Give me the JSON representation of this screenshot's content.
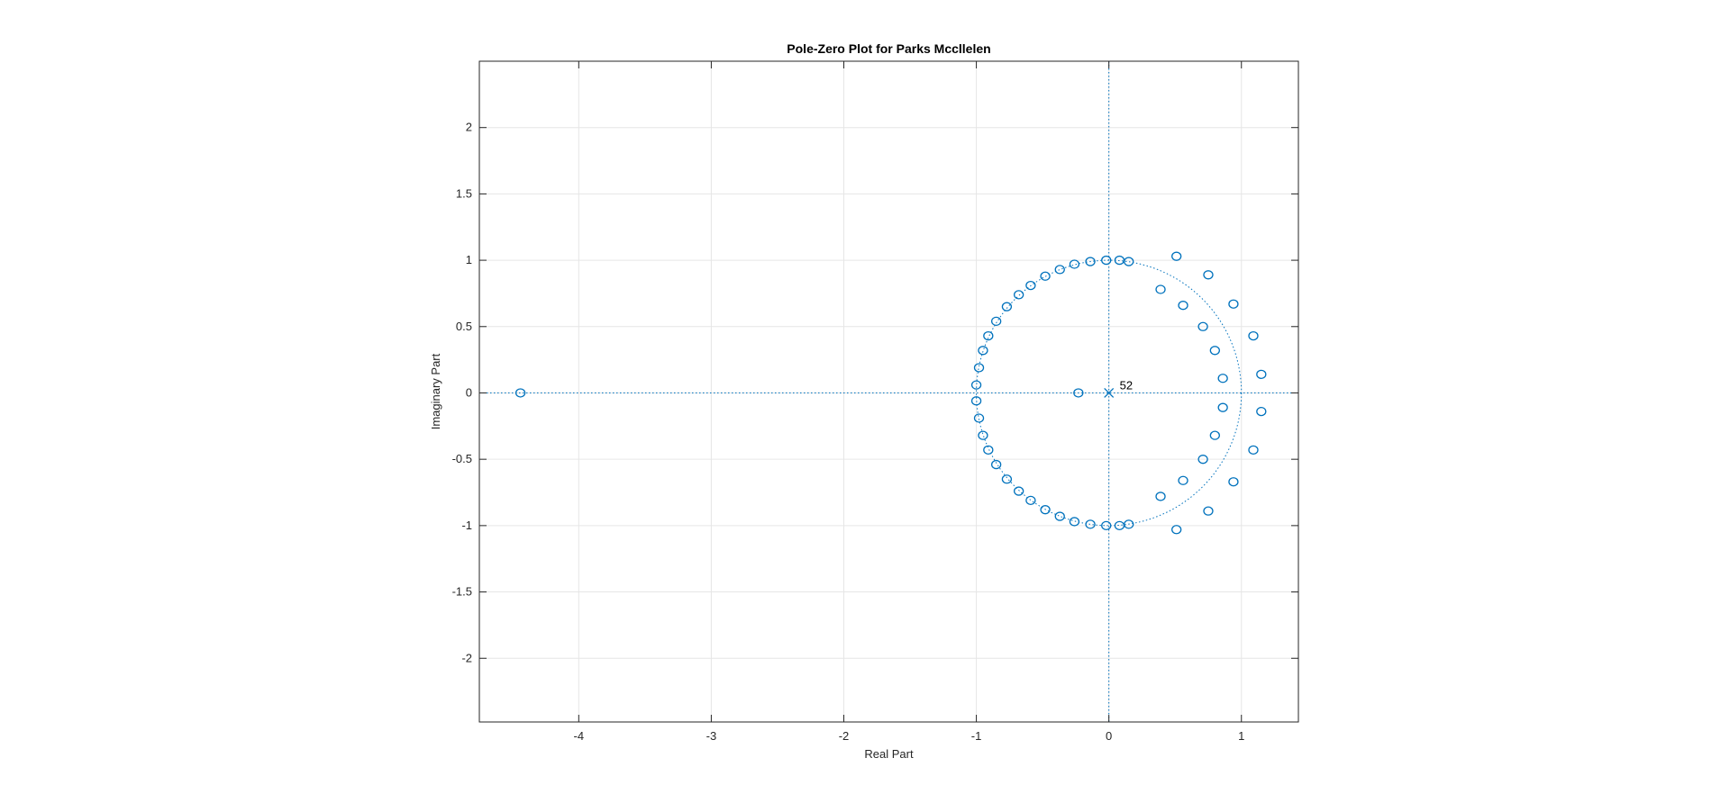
{
  "chart_data": {
    "type": "scatter",
    "title": "Pole-Zero Plot for Parks Mccllelen",
    "xlabel": "Real Part",
    "ylabel": "Imaginary Part",
    "xlim": [
      -4.75,
      1.43
    ],
    "ylim": [
      -2.48,
      2.5
    ],
    "xticks": [
      -4,
      -3,
      -2,
      -1,
      0,
      1
    ],
    "yticks": [
      -2,
      -1.5,
      -1,
      -0.5,
      0,
      0.5,
      1,
      1.5,
      2
    ],
    "xtick_labels": [
      "-4",
      "-3",
      "-2",
      "-1",
      "0",
      "1"
    ],
    "ytick_labels": [
      "-2",
      "-1.5",
      "-1",
      "-0.5",
      "0",
      "0.5",
      "1",
      "1.5",
      "2"
    ],
    "grid": true,
    "unit_circle": true,
    "colors": {
      "series": "#0072BD",
      "grid": "#e6e6e6",
      "axes": "#262626"
    },
    "series": [
      {
        "marker": "o",
        "points": [
          [
            -4.44,
            0
          ],
          [
            -0.23,
            0
          ],
          [
            -1.0,
            0.06
          ],
          [
            -0.98,
            0.19
          ],
          [
            -0.95,
            0.32
          ],
          [
            -0.91,
            0.43
          ],
          [
            -0.85,
            0.54
          ],
          [
            -0.77,
            0.65
          ],
          [
            -0.68,
            0.74
          ],
          [
            -0.59,
            0.81
          ],
          [
            -0.48,
            0.88
          ],
          [
            -0.37,
            0.93
          ],
          [
            -0.26,
            0.97
          ],
          [
            -0.14,
            0.99
          ],
          [
            -0.02,
            1.0
          ],
          [
            0.08,
            1.0
          ],
          [
            0.15,
            0.99
          ],
          [
            -1.0,
            -0.06
          ],
          [
            -0.98,
            -0.19
          ],
          [
            -0.95,
            -0.32
          ],
          [
            -0.91,
            -0.43
          ],
          [
            -0.85,
            -0.54
          ],
          [
            -0.77,
            -0.65
          ],
          [
            -0.68,
            -0.74
          ],
          [
            -0.59,
            -0.81
          ],
          [
            -0.48,
            -0.88
          ],
          [
            -0.37,
            -0.93
          ],
          [
            -0.26,
            -0.97
          ],
          [
            -0.14,
            -0.99
          ],
          [
            -0.02,
            -1.0
          ],
          [
            0.08,
            -1.0
          ],
          [
            0.15,
            -0.99
          ],
          [
            0.51,
            1.03
          ],
          [
            0.75,
            0.89
          ],
          [
            0.94,
            0.67
          ],
          [
            1.09,
            0.43
          ],
          [
            1.15,
            0.14
          ],
          [
            0.39,
            0.78
          ],
          [
            0.56,
            0.66
          ],
          [
            0.71,
            0.5
          ],
          [
            0.8,
            0.32
          ],
          [
            0.86,
            0.11
          ],
          [
            0.51,
            -1.03
          ],
          [
            0.75,
            -0.89
          ],
          [
            0.94,
            -0.67
          ],
          [
            1.09,
            -0.43
          ],
          [
            1.15,
            -0.14
          ],
          [
            0.39,
            -0.78
          ],
          [
            0.56,
            -0.66
          ],
          [
            0.71,
            -0.5
          ],
          [
            0.8,
            -0.32
          ],
          [
            0.86,
            -0.11
          ]
        ]
      },
      {
        "marker": "x",
        "points": [
          [
            0,
            0
          ]
        ]
      }
    ],
    "annotations": [
      {
        "text": "52",
        "x": 0,
        "y": 0
      }
    ]
  }
}
